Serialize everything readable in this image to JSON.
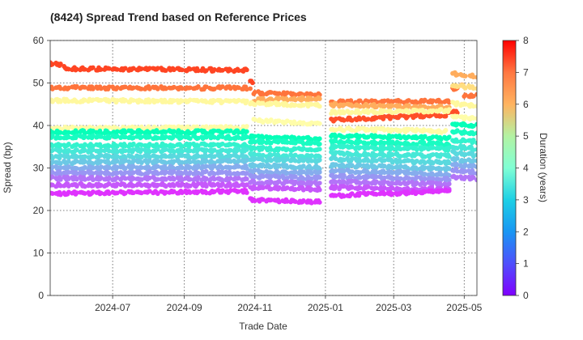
{
  "chart_data": {
    "type": "scatter",
    "title": "(8424)   Spread Trend based on Reference Prices",
    "xlabel": "Trade Date",
    "ylabel": "Spread (bp)",
    "colorbar_label": "Duration (years)",
    "x_range": [
      "2024-05-08",
      "2025-05-12"
    ],
    "ylim": [
      0,
      60
    ],
    "x_ticks": [
      {
        "date": "2024-07-01",
        "label": "2024-07"
      },
      {
        "date": "2024-09-01",
        "label": "2024-09"
      },
      {
        "date": "2024-11-01",
        "label": "2024-11"
      },
      {
        "date": "2025-01-01",
        "label": "2025-01"
      },
      {
        "date": "2025-03-01",
        "label": "2025-03"
      },
      {
        "date": "2025-05-01",
        "label": "2025-05"
      }
    ],
    "y_ticks": [
      0,
      10,
      20,
      30,
      40,
      50,
      60
    ],
    "colorbar_range": [
      0,
      8
    ],
    "colorbar_ticks": [
      0,
      1,
      2,
      3,
      4,
      5,
      6,
      7,
      8
    ],
    "colormap": "rainbow",
    "grid": true,
    "point_color_encodes": "Duration (years)",
    "series": [
      {
        "duration": 7.3,
        "segments": [
          {
            "start": "2024-05-08",
            "end": "2024-05-20",
            "y0": 54.6,
            "y1": 54.2
          },
          {
            "start": "2024-05-21",
            "end": "2024-10-25",
            "y0": 53.4,
            "y1": 53.0
          },
          {
            "start": "2024-10-28",
            "end": "2024-10-30",
            "y0": 50.8,
            "y1": 50.2
          }
        ]
      },
      {
        "duration": 6.8,
        "segments": [
          {
            "start": "2024-05-08",
            "end": "2024-10-28",
            "y0": 48.9,
            "y1": 48.8
          },
          {
            "start": "2024-10-31",
            "end": "2024-12-27",
            "y0": 47.7,
            "y1": 47.3
          },
          {
            "start": "2025-01-06",
            "end": "2025-04-18",
            "y0": 45.5,
            "y1": 45.7
          },
          {
            "start": "2025-04-21",
            "end": "2025-04-30",
            "y0": 48.5,
            "y1": 49.5
          },
          {
            "start": "2025-05-01",
            "end": "2025-05-12",
            "y0": 47.0,
            "y1": 47.2
          }
        ]
      },
      {
        "duration": 7.2,
        "segments": [
          {
            "start": "2025-01-06",
            "end": "2025-04-15",
            "y0": 41.3,
            "y1": 42.5
          },
          {
            "start": "2025-04-16",
            "end": "2025-04-25",
            "y0": 42.9,
            "y1": 43.3
          }
        ]
      },
      {
        "duration": 6.1,
        "segments": [
          {
            "start": "2024-10-31",
            "end": "2024-12-27",
            "y0": 46.0,
            "y1": 46.4
          },
          {
            "start": "2025-01-06",
            "end": "2025-04-18",
            "y0": 44.9,
            "y1": 44.2
          },
          {
            "start": "2025-04-21",
            "end": "2025-05-02",
            "y0": 52.3,
            "y1": 51.6
          },
          {
            "start": "2025-05-06",
            "end": "2025-05-12",
            "y0": 51.6,
            "y1": 51.6
          }
        ]
      },
      {
        "duration": 5.3,
        "segments": [
          {
            "start": "2025-04-21",
            "end": "2025-05-12",
            "y0": 49.5,
            "y1": 48.8
          }
        ]
      },
      {
        "duration": 4.6,
        "segments": [
          {
            "start": "2024-05-08",
            "end": "2024-10-25",
            "y0": 45.9,
            "y1": 45.6
          },
          {
            "start": "2024-10-28",
            "end": "2024-12-27",
            "y0": 45.2,
            "y1": 44.8
          },
          {
            "start": "2025-01-06",
            "end": "2025-04-18",
            "y0": 43.1,
            "y1": 43.5
          },
          {
            "start": "2025-04-21",
            "end": "2025-05-12",
            "y0": 45.2,
            "y1": 44.5
          }
        ]
      },
      {
        "duration": 4.3,
        "segments": [
          {
            "start": "2024-10-31",
            "end": "2024-12-27",
            "y0": 41.2,
            "y1": 40.5
          },
          {
            "start": "2025-04-21",
            "end": "2025-05-12",
            "y0": 42.0,
            "y1": 41.5
          }
        ]
      },
      {
        "duration": 4.4,
        "segments": [
          {
            "start": "2024-05-08",
            "end": "2024-10-25",
            "y0": 39.3,
            "y1": 39.5
          },
          {
            "start": "2025-01-06",
            "end": "2025-04-15",
            "y0": 39.2,
            "y1": 38.6
          }
        ]
      },
      {
        "duration": 3.9,
        "segments": [
          {
            "start": "2024-05-08",
            "end": "2024-10-25",
            "y0": 38.5,
            "y1": 38.5
          },
          {
            "start": "2024-10-28",
            "end": "2024-12-27",
            "y0": 37.3,
            "y1": 36.8
          },
          {
            "start": "2025-01-06",
            "end": "2025-04-18",
            "y0": 37.6,
            "y1": 37.0
          },
          {
            "start": "2025-04-21",
            "end": "2025-05-12",
            "y0": 40.4,
            "y1": 40.0
          }
        ]
      },
      {
        "duration": 3.6,
        "segments": [
          {
            "start": "2024-05-08",
            "end": "2024-10-25",
            "y0": 37.3,
            "y1": 37.2
          },
          {
            "start": "2024-10-28",
            "end": "2024-12-27",
            "y0": 36.3,
            "y1": 35.9
          },
          {
            "start": "2025-01-06",
            "end": "2025-04-18",
            "y0": 36.1,
            "y1": 35.6
          },
          {
            "start": "2025-04-21",
            "end": "2025-05-12",
            "y0": 38.6,
            "y1": 38.2
          }
        ]
      },
      {
        "duration": 3.2,
        "segments": [
          {
            "start": "2024-05-08",
            "end": "2024-10-25",
            "y0": 35.3,
            "y1": 35.4
          },
          {
            "start": "2024-10-28",
            "end": "2024-12-27",
            "y0": 34.6,
            "y1": 34.3
          },
          {
            "start": "2025-01-06",
            "end": "2025-04-18",
            "y0": 34.9,
            "y1": 34.5
          },
          {
            "start": "2025-04-21",
            "end": "2025-05-12",
            "y0": 36.6,
            "y1": 36.2
          }
        ]
      },
      {
        "duration": 2.9,
        "segments": [
          {
            "start": "2024-05-08",
            "end": "2024-10-25",
            "y0": 34.0,
            "y1": 34.1
          },
          {
            "start": "2024-10-28",
            "end": "2024-12-27",
            "y0": 33.1,
            "y1": 32.6
          },
          {
            "start": "2025-01-06",
            "end": "2025-04-18",
            "y0": 33.4,
            "y1": 32.8
          },
          {
            "start": "2025-04-21",
            "end": "2025-05-12",
            "y0": 35.0,
            "y1": 34.5
          }
        ]
      },
      {
        "duration": 2.6,
        "segments": [
          {
            "start": "2024-05-08",
            "end": "2024-10-25",
            "y0": 32.6,
            "y1": 32.8
          },
          {
            "start": "2024-10-28",
            "end": "2024-12-27",
            "y0": 32.0,
            "y1": 31.6
          },
          {
            "start": "2025-01-06",
            "end": "2025-04-18",
            "y0": 32.1,
            "y1": 31.2
          },
          {
            "start": "2025-04-21",
            "end": "2025-05-12",
            "y0": 33.6,
            "y1": 33.0
          }
        ]
      },
      {
        "duration": 2.3,
        "segments": [
          {
            "start": "2024-05-08",
            "end": "2024-10-25",
            "y0": 31.3,
            "y1": 31.5
          },
          {
            "start": "2024-10-28",
            "end": "2024-12-27",
            "y0": 30.6,
            "y1": 30.1
          },
          {
            "start": "2025-01-06",
            "end": "2025-04-18",
            "y0": 30.6,
            "y1": 29.8
          },
          {
            "start": "2025-04-21",
            "end": "2025-05-12",
            "y0": 32.0,
            "y1": 31.5
          }
        ]
      },
      {
        "duration": 1.9,
        "segments": [
          {
            "start": "2024-05-08",
            "end": "2024-10-25",
            "y0": 30.0,
            "y1": 30.2
          },
          {
            "start": "2024-10-28",
            "end": "2024-12-27",
            "y0": 29.2,
            "y1": 28.8
          },
          {
            "start": "2025-01-06",
            "end": "2025-04-18",
            "y0": 29.3,
            "y1": 28.6
          },
          {
            "start": "2025-04-21",
            "end": "2025-05-12",
            "y0": 30.8,
            "y1": 30.2
          }
        ]
      },
      {
        "duration": 1.6,
        "segments": [
          {
            "start": "2024-05-08",
            "end": "2024-10-25",
            "y0": 28.8,
            "y1": 28.9
          },
          {
            "start": "2024-10-28",
            "end": "2024-12-27",
            "y0": 28.0,
            "y1": 27.6
          },
          {
            "start": "2025-01-06",
            "end": "2025-04-18",
            "y0": 28.0,
            "y1": 27.3
          },
          {
            "start": "2025-04-21",
            "end": "2025-05-12",
            "y0": 29.6,
            "y1": 29.0
          }
        ]
      },
      {
        "duration": 1.2,
        "segments": [
          {
            "start": "2024-05-08",
            "end": "2024-10-25",
            "y0": 27.6,
            "y1": 27.4
          },
          {
            "start": "2024-10-28",
            "end": "2024-12-27",
            "y0": 26.7,
            "y1": 26.3
          },
          {
            "start": "2025-01-06",
            "end": "2025-04-18",
            "y0": 26.7,
            "y1": 26.2
          },
          {
            "start": "2025-04-21",
            "end": "2025-05-12",
            "y0": 28.0,
            "y1": 27.4
          }
        ]
      },
      {
        "duration": 0.9,
        "segments": [
          {
            "start": "2024-05-08",
            "end": "2024-10-25",
            "y0": 26.0,
            "y1": 26.0
          },
          {
            "start": "2024-10-28",
            "end": "2024-12-27",
            "y0": 25.4,
            "y1": 25.0
          },
          {
            "start": "2025-01-06",
            "end": "2025-04-18",
            "y0": 25.4,
            "y1": 25.0
          }
        ]
      },
      {
        "duration": 0.5,
        "segments": [
          {
            "start": "2024-05-08",
            "end": "2024-10-25",
            "y0": 24.0,
            "y1": 24.5
          },
          {
            "start": "2024-10-28",
            "end": "2024-12-27",
            "y0": 22.5,
            "y1": 22.0
          },
          {
            "start": "2025-01-06",
            "end": "2025-04-18",
            "y0": 23.5,
            "y1": 24.5
          }
        ]
      }
    ]
  }
}
